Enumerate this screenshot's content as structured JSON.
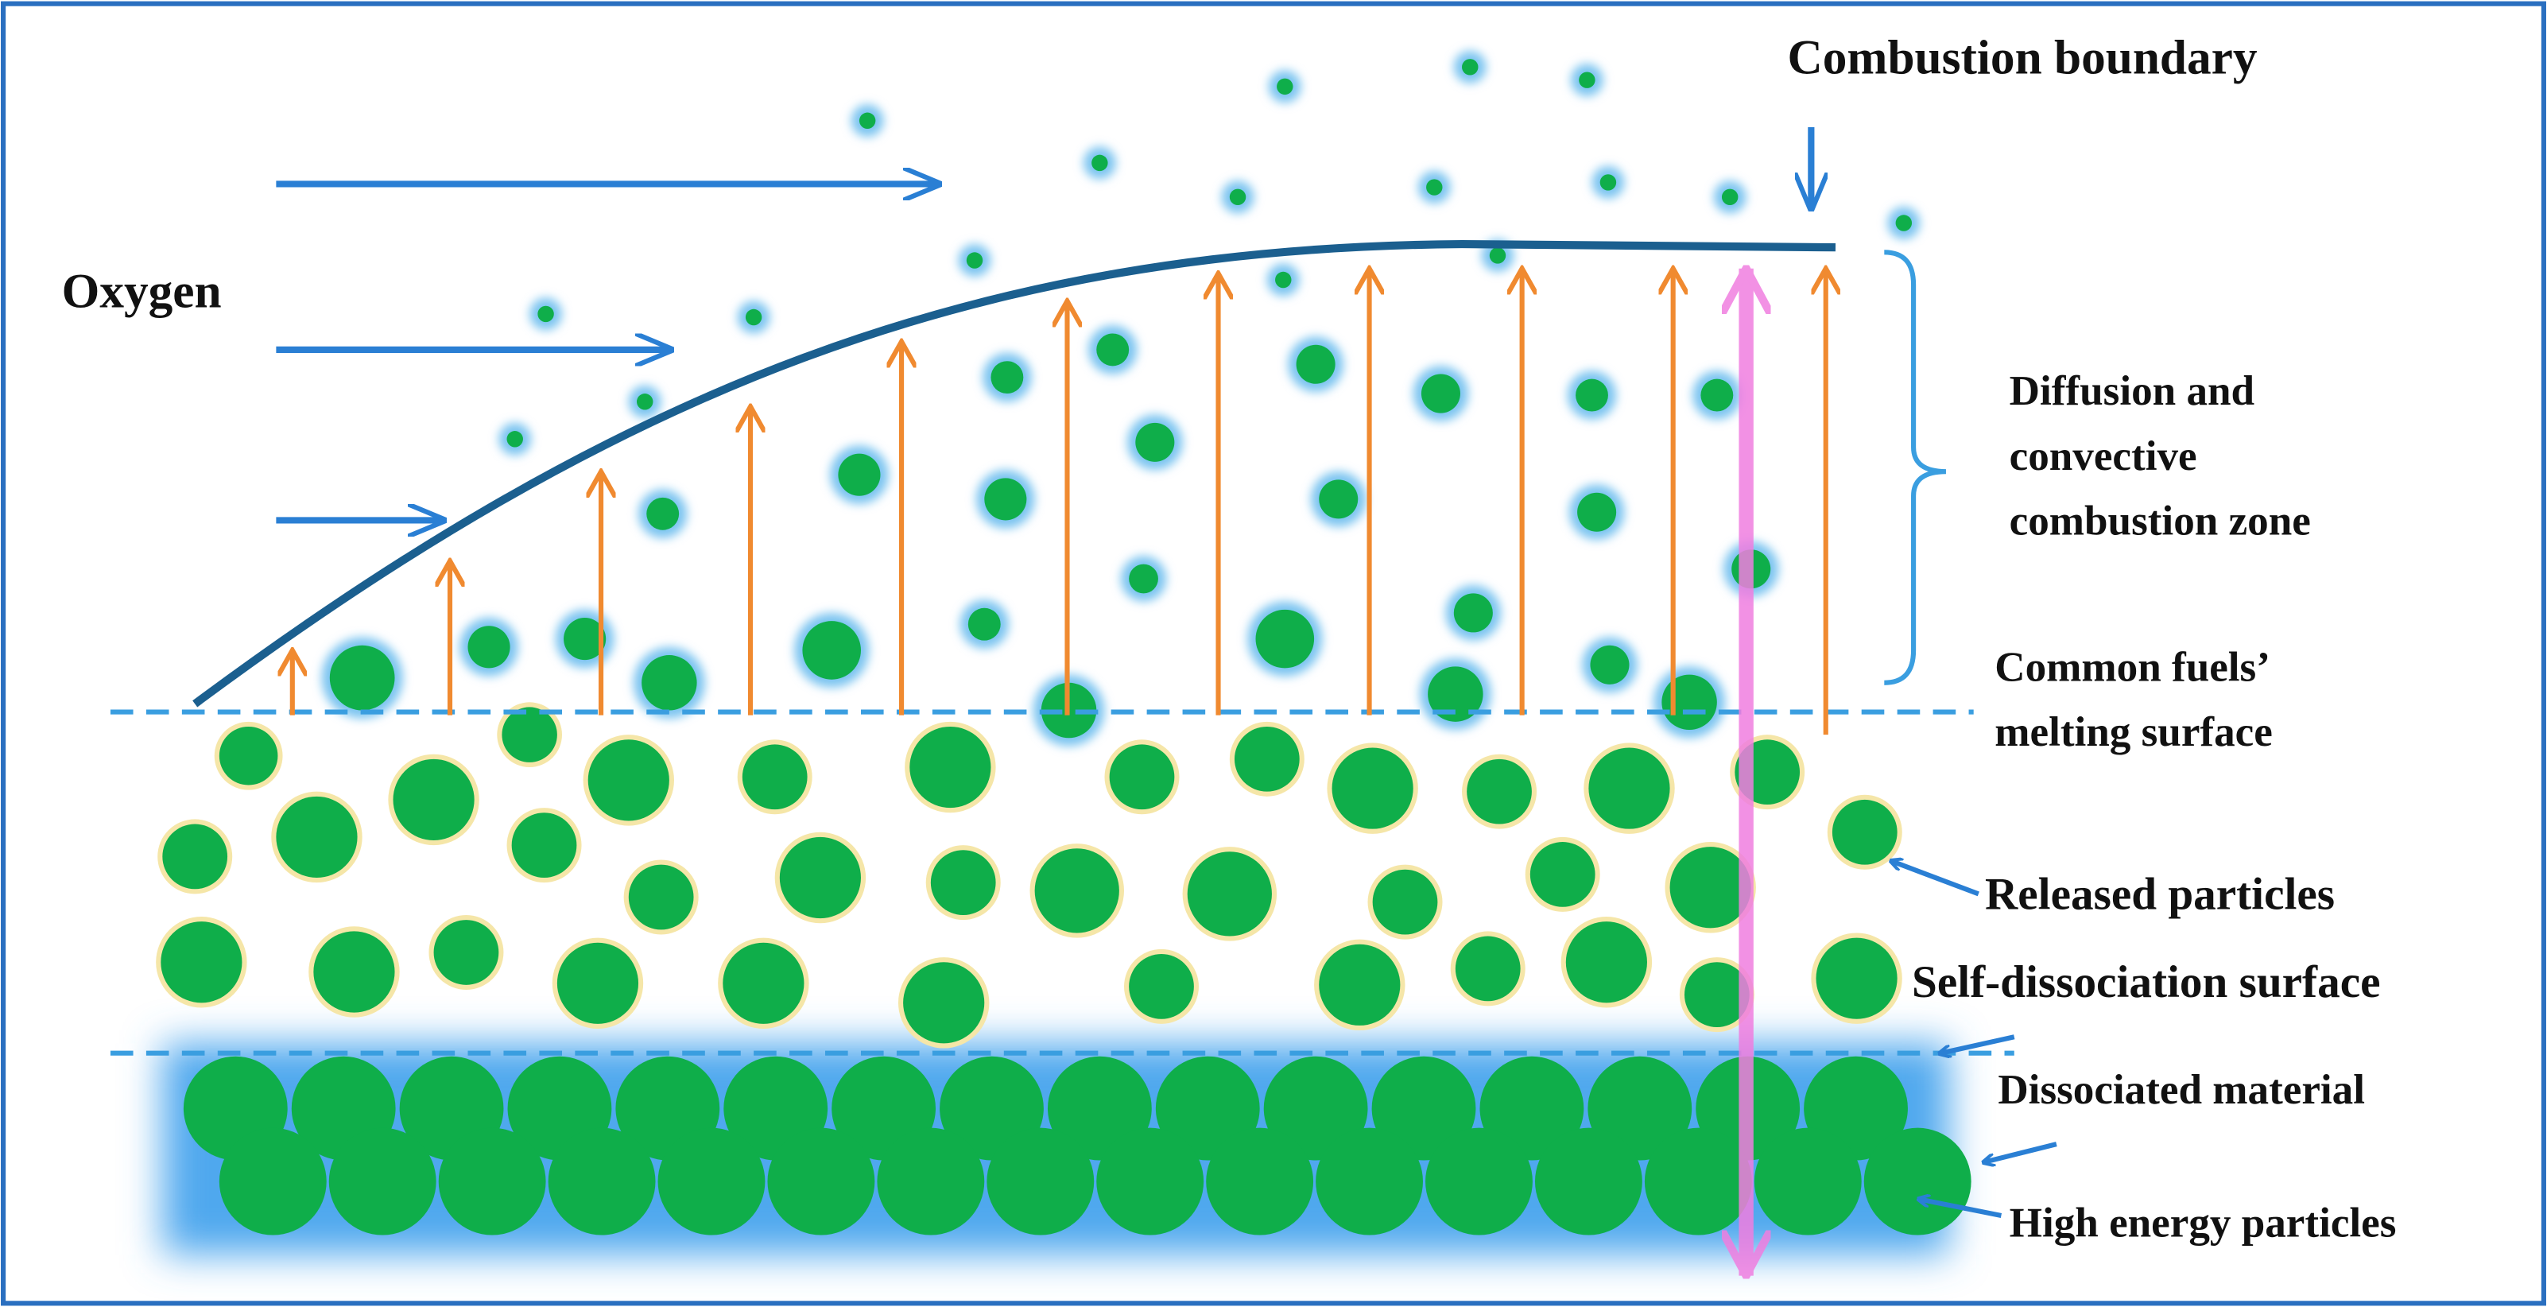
{
  "labels": {
    "combustion_boundary": "Combustion boundary",
    "oxygen": "Oxygen",
    "combustion_zone": [
      "Diffusion and",
      "convective",
      "combustion zone"
    ],
    "melting_surface": [
      "Common fuels’",
      "melting surface"
    ],
    "released_particles": "Released particles",
    "self_dissociation_surface": "Self-dissociation surface",
    "dissociated_material": "Dissociated material",
    "high_energy_particles": "High energy particles"
  }
}
